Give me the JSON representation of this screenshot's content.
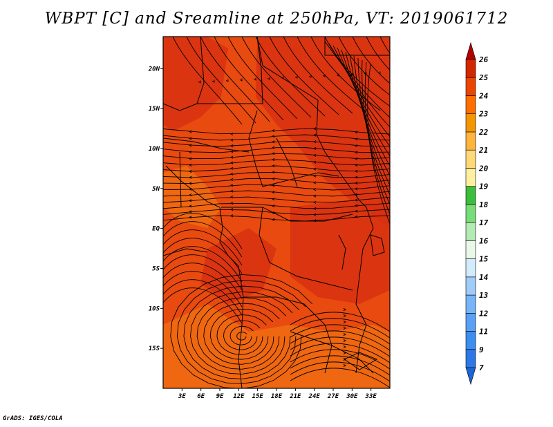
{
  "title": "WBPT [C] and Sreamline at 250hPa, VT: 2019061712",
  "footer": "GrADS: IGES/COLA",
  "map": {
    "lon_range": [
      0,
      36
    ],
    "lat_range": [
      -20,
      24
    ],
    "x_ticks": [
      "3E",
      "6E",
      "9E",
      "12E",
      "15E",
      "18E",
      "21E",
      "24E",
      "27E",
      "30E",
      "33E"
    ],
    "y_ticks": [
      "20N",
      "15N",
      "10N",
      "5N",
      "EQ",
      "5S",
      "10S",
      "15S"
    ]
  },
  "colorbar": {
    "levels": [
      "7",
      "9",
      "11",
      "12",
      "13",
      "14",
      "15",
      "16",
      "17",
      "18",
      "19",
      "20",
      "21",
      "22",
      "23",
      "24",
      "25",
      "26"
    ],
    "colors": [
      "#1e64d2",
      "#2d78e6",
      "#3c8ef0",
      "#5aa0f5",
      "#78b4f8",
      "#a0ccfa",
      "#d2ecfd",
      "#eaf8ea",
      "#b4eab4",
      "#78dc78",
      "#3cbe3c",
      "#fff0a0",
      "#ffd878",
      "#ffb43c",
      "#f59600",
      "#ff6e00",
      "#eb4600",
      "#d22800",
      "#b40000"
    ]
  },
  "colors": {
    "field_main": "#e84a10",
    "field_dark": "#d83010",
    "field_light": "#f06a12",
    "stream": "#000000"
  }
}
